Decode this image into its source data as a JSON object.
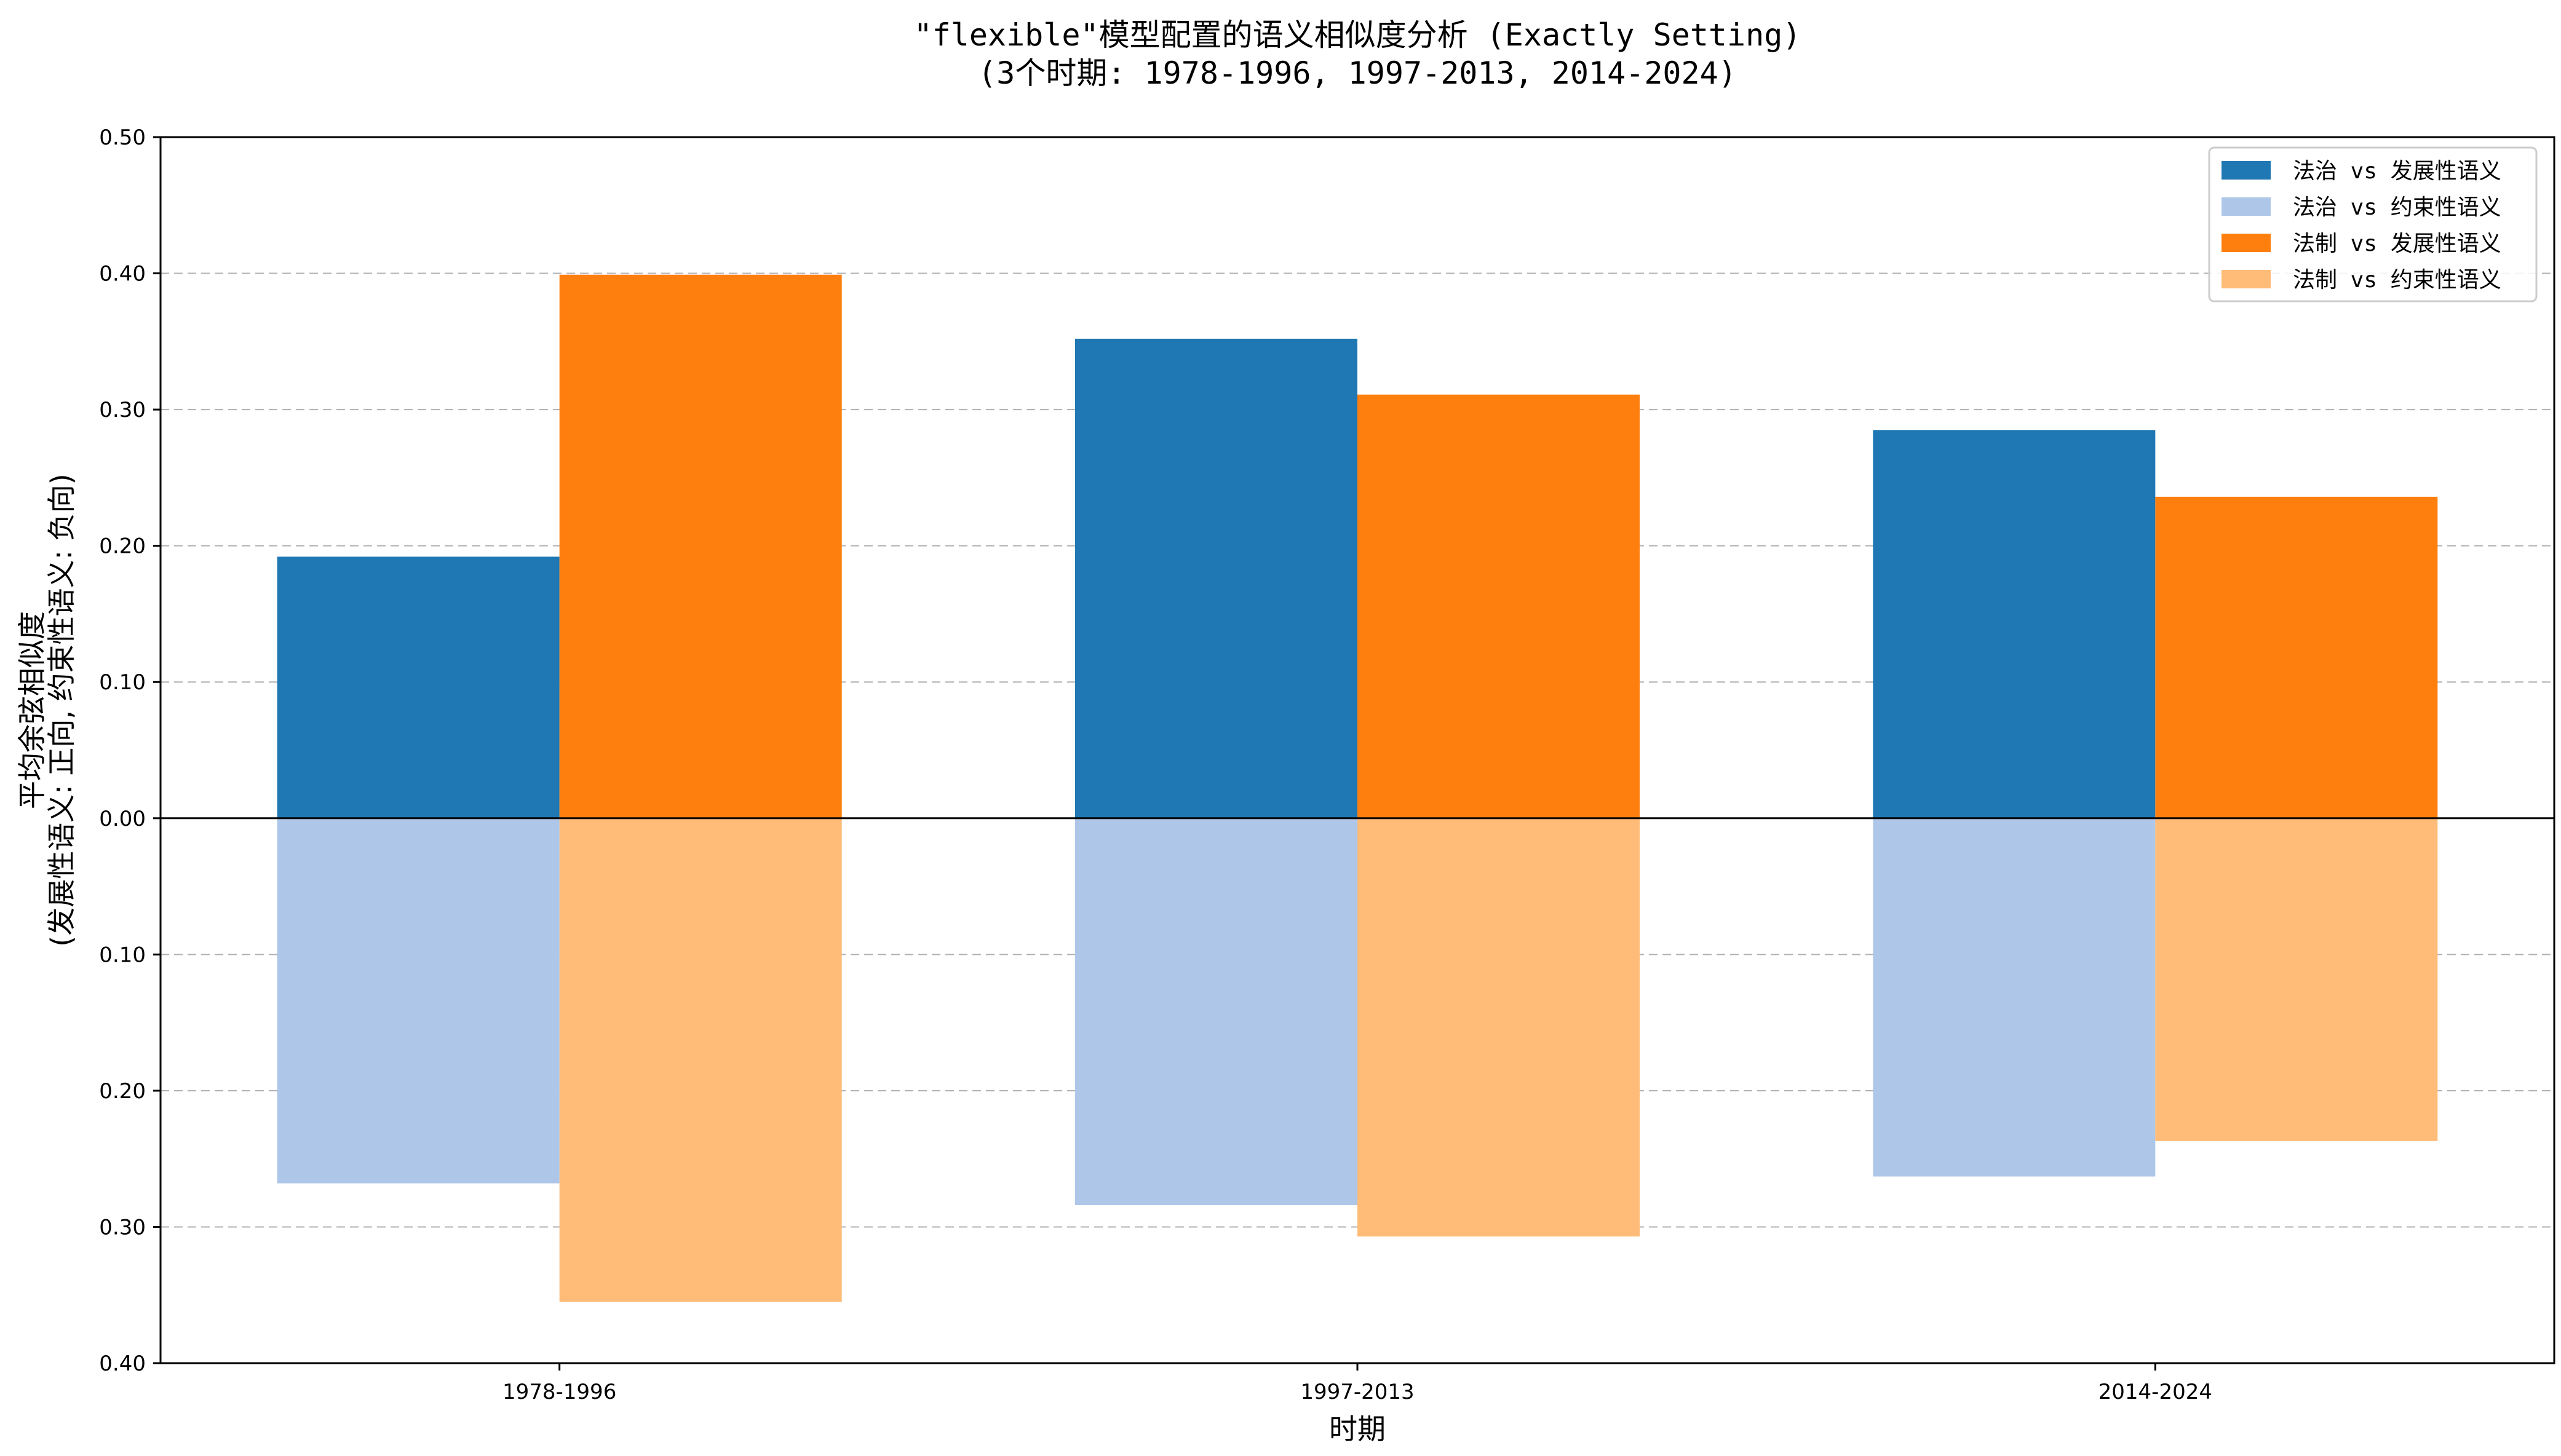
{
  "chart_data": {
    "type": "bar",
    "title": "\"flexible\"模型配置的语义相似度分析 (Exactly Setting)",
    "subtitle": "(3个时期: 1978-1996, 1997-2013, 2014-2024)",
    "xlabel": "时期",
    "ylabel_line1": "平均余弦相似度",
    "ylabel_line2": "(发展性语义: 正向, 约束性语义: 负向)",
    "categories": [
      "1978-1996",
      "1997-2013",
      "2014-2024"
    ],
    "ylim": [
      -0.4,
      0.5
    ],
    "yticks": [
      0.5,
      0.4,
      0.3,
      0.2,
      0.1,
      0.0,
      -0.1,
      -0.2,
      -0.3,
      -0.4
    ],
    "ytick_labels": [
      "0.50",
      "0.40",
      "0.30",
      "0.20",
      "0.10",
      "0.00",
      "0.10",
      "0.20",
      "0.30",
      "0.40"
    ],
    "grid": "y-dashed",
    "legend_position": "top-right",
    "series": [
      {
        "name": "法治 vs 发展性语义",
        "color": "#1f77b4",
        "values": [
          0.192,
          0.352,
          0.285
        ]
      },
      {
        "name": "法治 vs 约束性语义",
        "color": "#aec7e8",
        "values": [
          -0.268,
          -0.284,
          -0.263
        ]
      },
      {
        "name": "法制 vs 发展性语义",
        "color": "#ff7f0e",
        "values": [
          0.399,
          0.311,
          0.236
        ]
      },
      {
        "name": "法制 vs 约束性语义",
        "color": "#ffbb78",
        "values": [
          -0.355,
          -0.307,
          -0.237
        ]
      }
    ]
  }
}
